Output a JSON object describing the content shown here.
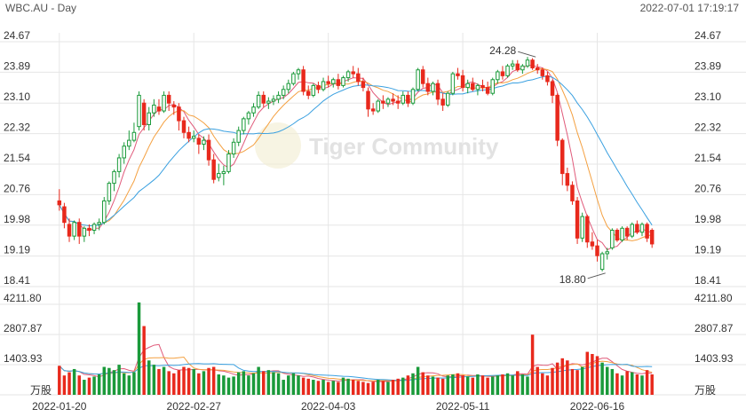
{
  "header": {
    "symbol_label": "WBC.AU - Day",
    "datetime": "2022-07-01 17:19:17"
  },
  "watermark": {
    "text": "Tiger Community"
  },
  "colors": {
    "up": "#1a9a3a",
    "down": "#e8291c",
    "ma5": "#e05a7a",
    "ma10": "#f4a040",
    "ma20": "#3aa0e0",
    "grid": "#e6e6e6"
  },
  "chart_data": {
    "type": "candlestick",
    "price_axis": {
      "ticks": [
        "24.67",
        "23.89",
        "23.10",
        "22.32",
        "21.54",
        "20.76",
        "19.98",
        "19.19",
        "18.41"
      ],
      "range": [
        18.41,
        24.67
      ]
    },
    "volume_axis": {
      "ticks": [
        "4211.80",
        "2807.87",
        "1403.93"
      ],
      "unit": "万股",
      "range": [
        0,
        4211.8
      ]
    },
    "x_axis": {
      "labels": [
        {
          "index": 0,
          "text": "2022-01-20"
        },
        {
          "index": 27,
          "text": "2022-02-27"
        },
        {
          "index": 54,
          "text": "2022-04-03"
        },
        {
          "index": 81,
          "text": "2022-05-11"
        },
        {
          "index": 108,
          "text": "2022-06-16"
        }
      ]
    },
    "annotations": {
      "high": {
        "index": 96,
        "value": "24.28"
      },
      "low": {
        "index": 110,
        "value": "18.80"
      }
    },
    "ohlc": [
      [
        20.6,
        20.9,
        20.35,
        20.5
      ],
      [
        20.45,
        20.55,
        19.9,
        20.05
      ],
      [
        20.0,
        20.15,
        19.55,
        19.7
      ],
      [
        19.7,
        20.1,
        19.6,
        20.05
      ],
      [
        20.05,
        20.15,
        19.5,
        19.7
      ],
      [
        19.7,
        19.95,
        19.55,
        19.9
      ],
      [
        19.9,
        20.0,
        19.7,
        19.85
      ],
      [
        19.85,
        20.05,
        19.75,
        20.0
      ],
      [
        20.0,
        20.15,
        19.85,
        20.05
      ],
      [
        20.05,
        20.7,
        20.0,
        20.6
      ],
      [
        20.6,
        21.1,
        20.5,
        21.05
      ],
      [
        21.05,
        21.4,
        20.85,
        21.35
      ],
      [
        21.35,
        21.8,
        21.2,
        21.7
      ],
      [
        21.7,
        22.1,
        21.55,
        22.0
      ],
      [
        22.0,
        22.4,
        21.9,
        22.15
      ],
      [
        22.15,
        22.6,
        22.1,
        22.35
      ],
      [
        22.5,
        23.4,
        22.4,
        23.3
      ],
      [
        23.1,
        23.2,
        22.4,
        22.55
      ],
      [
        22.55,
        23.0,
        22.4,
        22.85
      ],
      [
        22.85,
        23.2,
        22.75,
        23.05
      ],
      [
        23.0,
        23.2,
        22.8,
        22.9
      ],
      [
        22.9,
        23.4,
        22.85,
        23.3
      ],
      [
        23.3,
        23.4,
        22.9,
        23.1
      ],
      [
        23.05,
        23.15,
        22.8,
        23.0
      ],
      [
        23.0,
        23.1,
        22.4,
        22.65
      ],
      [
        22.65,
        22.75,
        22.2,
        22.35
      ],
      [
        22.35,
        22.5,
        22.1,
        22.2
      ],
      [
        22.2,
        22.4,
        22.1,
        22.25
      ],
      [
        22.2,
        22.3,
        21.8,
        22.05
      ],
      [
        22.05,
        22.25,
        21.9,
        22.15
      ],
      [
        22.15,
        22.3,
        21.5,
        21.65
      ],
      [
        21.65,
        21.8,
        21.05,
        21.15
      ],
      [
        21.2,
        21.55,
        21.1,
        21.3
      ],
      [
        21.3,
        21.5,
        21.0,
        21.35
      ],
      [
        21.35,
        21.9,
        21.3,
        21.8
      ],
      [
        21.8,
        22.2,
        21.7,
        22.1
      ],
      [
        22.1,
        22.5,
        22.0,
        22.4
      ],
      [
        22.4,
        22.75,
        22.3,
        22.7
      ],
      [
        22.7,
        22.9,
        22.55,
        22.85
      ],
      [
        22.85,
        23.1,
        22.75,
        23.0
      ],
      [
        23.0,
        23.4,
        22.95,
        23.3
      ],
      [
        23.3,
        23.4,
        23.0,
        23.1
      ],
      [
        23.1,
        23.25,
        22.95,
        23.15
      ],
      [
        23.15,
        23.3,
        23.05,
        23.2
      ],
      [
        23.2,
        23.4,
        23.1,
        23.3
      ],
      [
        23.3,
        23.55,
        23.2,
        23.45
      ],
      [
        23.45,
        23.7,
        23.35,
        23.6
      ],
      [
        23.6,
        23.9,
        23.55,
        23.85
      ],
      [
        23.85,
        24.0,
        23.7,
        23.95
      ],
      [
        23.95,
        24.05,
        23.3,
        23.4
      ],
      [
        23.4,
        23.55,
        23.2,
        23.3
      ],
      [
        23.3,
        23.6,
        23.25,
        23.55
      ],
      [
        23.55,
        23.65,
        23.35,
        23.45
      ],
      [
        23.45,
        23.75,
        23.4,
        23.65
      ],
      [
        23.65,
        23.8,
        23.5,
        23.6
      ],
      [
        23.6,
        23.75,
        23.5,
        23.7
      ],
      [
        23.7,
        23.85,
        23.45,
        23.55
      ],
      [
        23.55,
        23.8,
        23.5,
        23.75
      ],
      [
        23.75,
        23.95,
        23.65,
        23.9
      ],
      [
        23.9,
        24.05,
        23.75,
        23.85
      ],
      [
        23.85,
        24.0,
        23.55,
        23.65
      ],
      [
        23.65,
        23.75,
        23.4,
        23.5
      ],
      [
        23.4,
        23.5,
        22.75,
        22.95
      ],
      [
        22.95,
        23.1,
        22.8,
        22.9
      ],
      [
        22.9,
        23.2,
        22.85,
        23.15
      ],
      [
        23.15,
        23.3,
        22.95,
        23.1
      ],
      [
        23.1,
        23.25,
        23.0,
        23.2
      ],
      [
        23.2,
        23.35,
        23.05,
        23.15
      ],
      [
        23.15,
        23.3,
        22.95,
        23.1
      ],
      [
        23.1,
        23.4,
        23.05,
        23.3
      ],
      [
        23.3,
        23.4,
        23.0,
        23.1
      ],
      [
        23.1,
        23.5,
        23.05,
        23.45
      ],
      [
        23.45,
        24.0,
        23.4,
        23.95
      ],
      [
        23.95,
        24.05,
        23.5,
        23.6
      ],
      [
        23.6,
        23.75,
        23.3,
        23.4
      ],
      [
        23.4,
        23.65,
        23.3,
        23.6
      ],
      [
        23.6,
        23.7,
        23.05,
        23.2
      ],
      [
        23.2,
        23.35,
        22.9,
        23.05
      ],
      [
        23.05,
        23.4,
        23.0,
        23.35
      ],
      [
        23.35,
        23.9,
        23.3,
        23.85
      ],
      [
        23.85,
        24.0,
        23.7,
        23.8
      ],
      [
        23.8,
        23.95,
        23.4,
        23.5
      ],
      [
        23.5,
        23.7,
        23.35,
        23.6
      ],
      [
        23.6,
        23.75,
        23.4,
        23.45
      ],
      [
        23.45,
        23.6,
        23.3,
        23.55
      ],
      [
        23.55,
        23.7,
        23.4,
        23.5
      ],
      [
        23.5,
        23.65,
        23.3,
        23.35
      ],
      [
        23.35,
        23.75,
        23.3,
        23.7
      ],
      [
        23.7,
        23.95,
        23.6,
        23.9
      ],
      [
        23.9,
        24.05,
        23.7,
        23.8
      ],
      [
        23.8,
        24.1,
        23.75,
        24.05
      ],
      [
        24.05,
        24.2,
        23.95,
        24.1
      ],
      [
        24.1,
        24.2,
        23.9,
        23.95
      ],
      [
        23.95,
        24.1,
        23.85,
        24.05
      ],
      [
        24.05,
        24.28,
        24.0,
        24.2
      ],
      [
        24.2,
        24.25,
        23.95,
        24.0
      ],
      [
        24.0,
        24.1,
        23.85,
        23.95
      ],
      [
        23.95,
        24.0,
        23.7,
        23.8
      ],
      [
        23.8,
        23.9,
        23.55,
        23.65
      ],
      [
        23.65,
        23.7,
        23.1,
        23.3
      ],
      [
        23.3,
        23.35,
        22.0,
        22.15
      ],
      [
        22.15,
        22.2,
        21.0,
        21.3
      ],
      [
        21.3,
        21.45,
        20.85,
        21.0
      ],
      [
        21.0,
        21.1,
        20.5,
        20.6
      ],
      [
        20.6,
        20.7,
        19.5,
        19.65
      ],
      [
        19.65,
        20.3,
        19.55,
        20.2
      ],
      [
        20.2,
        20.25,
        19.4,
        19.55
      ],
      [
        19.55,
        19.8,
        19.35,
        19.45
      ],
      [
        19.45,
        19.6,
        19.05,
        19.2
      ],
      [
        18.85,
        19.3,
        18.8,
        19.25
      ],
      [
        19.25,
        19.4,
        19.1,
        19.3
      ],
      [
        19.4,
        19.9,
        19.35,
        19.85
      ],
      [
        19.85,
        19.9,
        19.55,
        19.6
      ],
      [
        19.6,
        19.95,
        19.55,
        19.9
      ],
      [
        19.9,
        19.95,
        19.6,
        19.7
      ],
      [
        19.7,
        20.05,
        19.65,
        20.0
      ],
      [
        20.0,
        20.1,
        19.75,
        19.8
      ],
      [
        19.8,
        20.05,
        19.7,
        20.0
      ],
      [
        20.0,
        20.05,
        19.55,
        19.65
      ],
      [
        19.85,
        19.9,
        19.4,
        19.5
      ]
    ],
    "volume": [
      1350,
      900,
      1050,
      1200,
      900,
      700,
      800,
      850,
      950,
      1300,
      1250,
      1150,
      1400,
      1000,
      900,
      1050,
      4300,
      3200,
      1600,
      1400,
      1200,
      1300,
      1100,
      1000,
      1150,
      1300,
      1250,
      1200,
      1000,
      1100,
      1250,
      1300,
      950,
      900,
      800,
      850,
      1050,
      1100,
      900,
      1000,
      1300,
      1100,
      1150,
      1050,
      1000,
      700,
      900,
      1000,
      900,
      800,
      750,
      700,
      650,
      700,
      600,
      650,
      600,
      800,
      750,
      700,
      650,
      600,
      550,
      600,
      700,
      650,
      600,
      700,
      750,
      800,
      900,
      1000,
      1300,
      1050,
      900,
      850,
      800,
      750,
      900,
      950,
      1000,
      900,
      850,
      800,
      950,
      900,
      800,
      850,
      900,
      950,
      1000,
      900,
      1100,
      950,
      850,
      2800,
      1300,
      1000,
      900,
      1250,
      1500,
      1700,
      1600,
      1200,
      1150,
      1300,
      2000,
      1900,
      1800,
      1500,
      1300,
      1200,
      1000,
      900,
      1100,
      1050,
      950,
      900,
      1150,
      950
    ],
    "series": [
      {
        "name": "MA5",
        "type": "line",
        "period": 5
      },
      {
        "name": "MA10",
        "type": "line",
        "period": 10
      },
      {
        "name": "MA20",
        "type": "line",
        "period": 20
      }
    ]
  }
}
